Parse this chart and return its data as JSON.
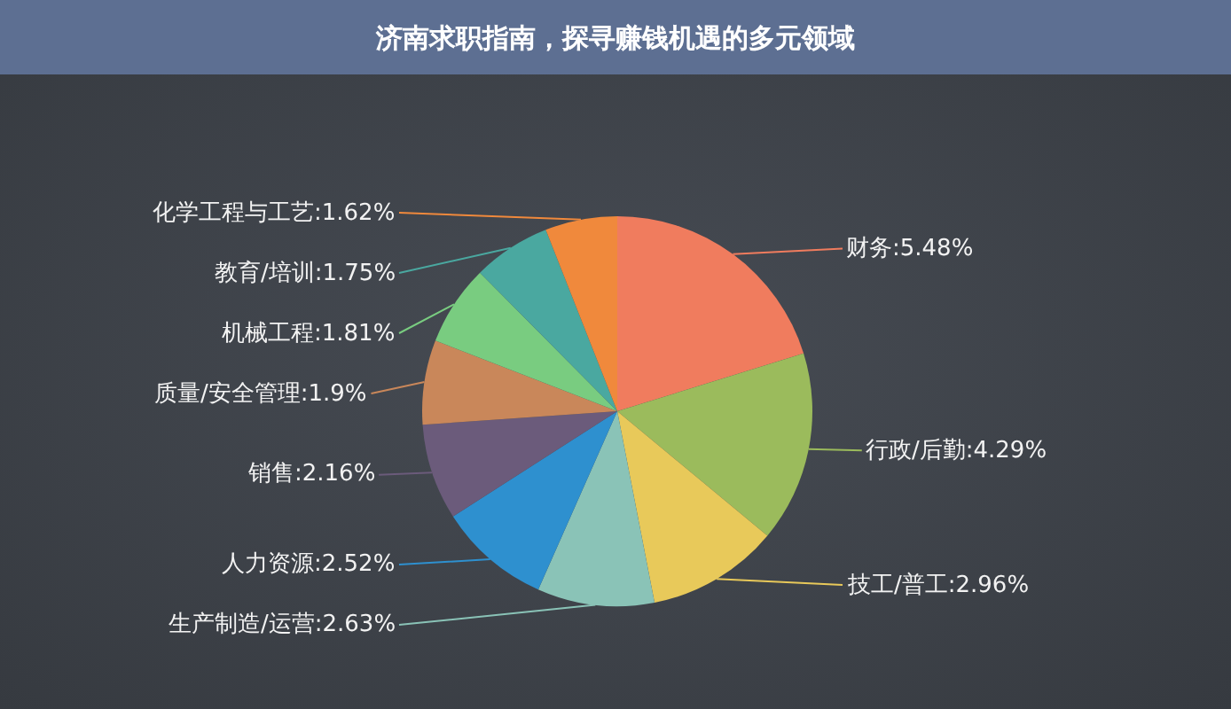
{
  "chart_data": {
    "type": "pie",
    "title": "济南求职指南，探寻赚钱机遇的多元领域",
    "categories": [
      "财务",
      "行政/后勤",
      "技工/普工",
      "生产制造/运营",
      "人力资源",
      "销售",
      "质量/安全管理",
      "机械工程",
      "教育/培训",
      "化学工程与工艺"
    ],
    "values": [
      5.48,
      4.29,
      2.96,
      2.63,
      2.52,
      2.16,
      1.9,
      1.81,
      1.75,
      1.62
    ],
    "value_labels": [
      "5.48%",
      "4.29%",
      "2.96%",
      "2.63%",
      "2.52%",
      "2.16%",
      "1.9%",
      "1.81%",
      "1.75%",
      "1.62%"
    ],
    "colors": [
      "#f07c5e",
      "#9bbb5c",
      "#e8c95a",
      "#8ac3b7",
      "#2e90cf",
      "#6b5b7b",
      "#c9875a",
      "#79cc80",
      "#4aa8a0",
      "#f0893c"
    ]
  }
}
